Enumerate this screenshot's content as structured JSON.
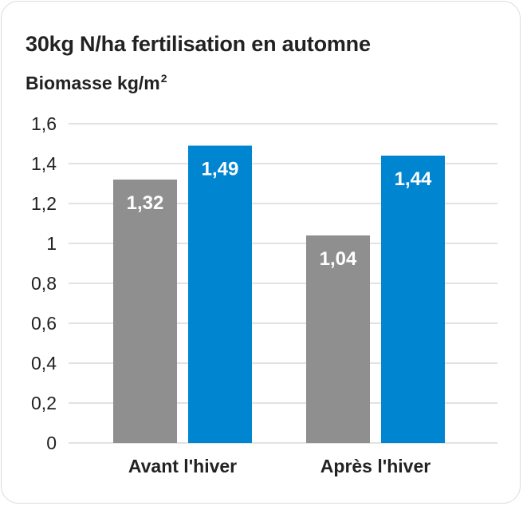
{
  "chart_data": {
    "type": "bar",
    "title": "30kg N/ha fertilisation en automne",
    "ylabel": "Biomasse kg/m",
    "ylabel_superscript": "2",
    "xlabel": "",
    "categories": [
      "Avant l'hiver",
      "Après l'hiver"
    ],
    "series": [
      {
        "values": [
          1.32,
          1.04
        ],
        "labels": [
          "1,32",
          "1,04"
        ],
        "color": "#8f8f8f"
      },
      {
        "values": [
          1.49,
          1.44
        ],
        "labels": [
          "1,49",
          "1,44"
        ],
        "color": "#0085d0"
      }
    ],
    "ylim": [
      0,
      1.6
    ],
    "yticks": [
      0,
      0.2,
      0.4,
      0.6,
      0.8,
      1,
      1.2,
      1.4,
      1.6
    ],
    "ytick_labels": [
      "0",
      "0,2",
      "0,4",
      "0,6",
      "0,8",
      "1",
      "1,2",
      "1,4",
      "1,6"
    ],
    "grid": true,
    "grid_color": "#d9d9d9",
    "legend": "none"
  }
}
